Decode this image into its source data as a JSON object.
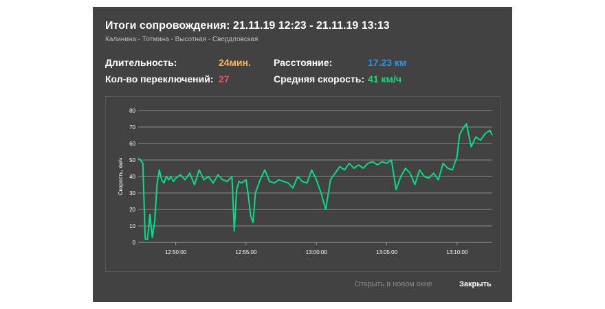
{
  "dialog": {
    "title": "Итоги сопровождения: 21.11.19 12:23 - 21.11.19 13:13",
    "route": "Калинина - Тотмина - Высотная - Свердловская"
  },
  "stats": {
    "duration_label": "Длительность:",
    "duration_value": "24мин.",
    "distance_label": "Расстояние:",
    "distance_value": "17.23 км",
    "switches_label": "Кол-во переключений:",
    "switches_value": "27",
    "avg_speed_label": "Средняя скорость:",
    "avg_speed_value": "41 км/ч"
  },
  "colors": {
    "duration": "#ffb74d",
    "distance": "#2196f3",
    "switches": "#ef5350",
    "avg_speed": "#00e676",
    "line": "#00e087"
  },
  "footer": {
    "open_new_window": "Открыть в новом окне",
    "close": "Закрыть"
  },
  "chart_data": {
    "type": "line",
    "ylabel": "Скорость, км/ч",
    "xlabel": "",
    "ylim": [
      0,
      80
    ],
    "yticks": [
      0,
      10,
      20,
      30,
      40,
      50,
      60,
      70,
      80
    ],
    "xlim": [
      "12:47:20",
      "13:12:30"
    ],
    "xticks": [
      "12:50:00",
      "12:55:00",
      "13:00:00",
      "13:05:00",
      "13:10:00"
    ],
    "grid": true,
    "series": [
      {
        "x": [
          "12:47:20",
          "12:47:30",
          "12:47:40",
          "12:47:50",
          "12:48:00",
          "12:48:10",
          "12:48:20",
          "12:48:30",
          "12:48:40",
          "12:48:50",
          "12:49:00",
          "12:49:10",
          "12:49:20",
          "12:49:30",
          "12:49:40",
          "12:49:50",
          "12:50:00",
          "12:50:20",
          "12:50:40",
          "12:51:00",
          "12:51:20",
          "12:51:40",
          "12:52:00",
          "12:52:20",
          "12:52:40",
          "12:53:00",
          "12:53:20",
          "12:53:40",
          "12:54:00",
          "12:54:10",
          "12:54:20",
          "12:54:30",
          "12:54:40",
          "12:55:00",
          "12:55:10",
          "12:55:20",
          "12:55:30",
          "12:55:40",
          "12:56:00",
          "12:56:20",
          "12:56:40",
          "12:57:00",
          "12:57:20",
          "12:57:40",
          "12:58:00",
          "12:58:20",
          "12:58:40",
          "12:59:00",
          "12:59:20",
          "12:59:40",
          "13:00:00",
          "13:00:20",
          "13:00:40",
          "13:01:00",
          "13:01:20",
          "13:01:40",
          "13:02:00",
          "13:02:20",
          "13:02:40",
          "13:03:00",
          "13:03:20",
          "13:03:40",
          "13:04:00",
          "13:04:20",
          "13:04:40",
          "13:05:00",
          "13:05:20",
          "13:05:40",
          "13:06:00",
          "13:06:20",
          "13:06:40",
          "13:07:00",
          "13:07:20",
          "13:07:40",
          "13:08:00",
          "13:08:20",
          "13:08:40",
          "13:09:00",
          "13:09:20",
          "13:09:40",
          "13:10:00",
          "13:10:10",
          "13:10:20",
          "13:10:40",
          "13:11:00",
          "13:11:20",
          "13:11:40",
          "13:12:00",
          "13:12:20",
          "13:12:30"
        ],
        "values": [
          51,
          50,
          48,
          2,
          2,
          17,
          3,
          12,
          35,
          44,
          38,
          36,
          40,
          38,
          40,
          37,
          39,
          41,
          38,
          42,
          35,
          44,
          38,
          40,
          36,
          41,
          38,
          37,
          40,
          7,
          32,
          37,
          36,
          38,
          28,
          16,
          12,
          30,
          38,
          44,
          37,
          36,
          38,
          37,
          36,
          33,
          40,
          37,
          36,
          44,
          38,
          30,
          20,
          38,
          42,
          46,
          44,
          48,
          45,
          47,
          45,
          48,
          49,
          47,
          49,
          48,
          50,
          32,
          40,
          45,
          42,
          35,
          44,
          40,
          39,
          42,
          38,
          48,
          45,
          44,
          52,
          65,
          68,
          72,
          58,
          64,
          62,
          66,
          68,
          65
        ]
      }
    ]
  }
}
